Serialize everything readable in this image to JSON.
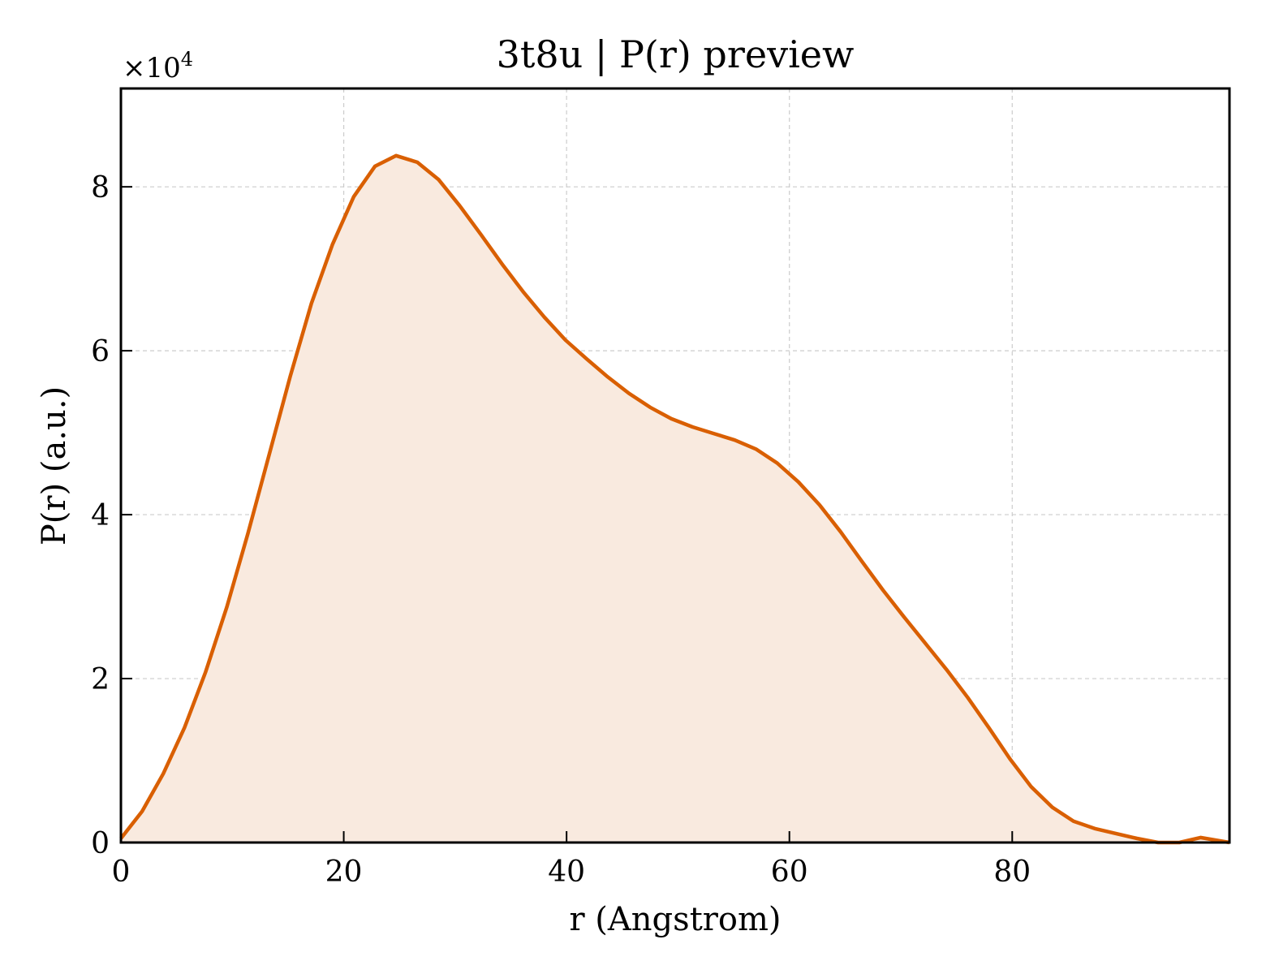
{
  "chart_data": {
    "type": "area",
    "title": "3t8u | P(r) preview",
    "xlabel": "r (Angstrom)",
    "ylabel": "P(r) (a.u.)",
    "y_multiplier_base": "×10",
    "y_multiplier_exp": "4",
    "xlim": [
      0,
      99.5
    ],
    "ylim": [
      0,
      9.2
    ],
    "xticks": [
      0,
      20,
      40,
      60,
      80
    ],
    "yticks": [
      0,
      2,
      4,
      6,
      8
    ],
    "grid": true,
    "colors": {
      "line": "#d95f02",
      "fill": "#f9eadf",
      "grid": "#cccccc"
    },
    "series": [
      {
        "x": [
          0,
          1.9,
          3.8,
          5.7,
          7.6,
          9.5,
          11.4,
          13.3,
          15.2,
          17.1,
          19.0,
          20.9,
          22.8,
          24.7,
          26.6,
          28.5,
          30.4,
          32.3,
          34.2,
          36.1,
          38.0,
          39.9,
          41.8,
          43.7,
          45.6,
          47.5,
          49.4,
          51.3,
          53.2,
          55.1,
          57.0,
          58.9,
          60.8,
          62.7,
          64.6,
          66.5,
          68.4,
          70.3,
          72.2,
          74.1,
          76.0,
          77.9,
          79.8,
          81.7,
          83.6,
          85.5,
          87.4,
          89.3,
          91.2,
          93.1,
          95.0,
          96.9,
          99.5
        ],
        "values": [
          0.05,
          0.38,
          0.84,
          1.4,
          2.08,
          2.87,
          3.77,
          4.73,
          5.69,
          6.58,
          7.3,
          7.88,
          8.25,
          8.38,
          8.3,
          8.09,
          7.77,
          7.42,
          7.06,
          6.72,
          6.41,
          6.13,
          5.9,
          5.68,
          5.48,
          5.31,
          5.17,
          5.07,
          4.99,
          4.91,
          4.8,
          4.63,
          4.4,
          4.12,
          3.79,
          3.43,
          3.08,
          2.75,
          2.43,
          2.11,
          1.77,
          1.4,
          1.02,
          0.68,
          0.43,
          0.26,
          0.17,
          0.11,
          0.05,
          0.0,
          0.0,
          0.06,
          0.0
        ]
      }
    ]
  }
}
